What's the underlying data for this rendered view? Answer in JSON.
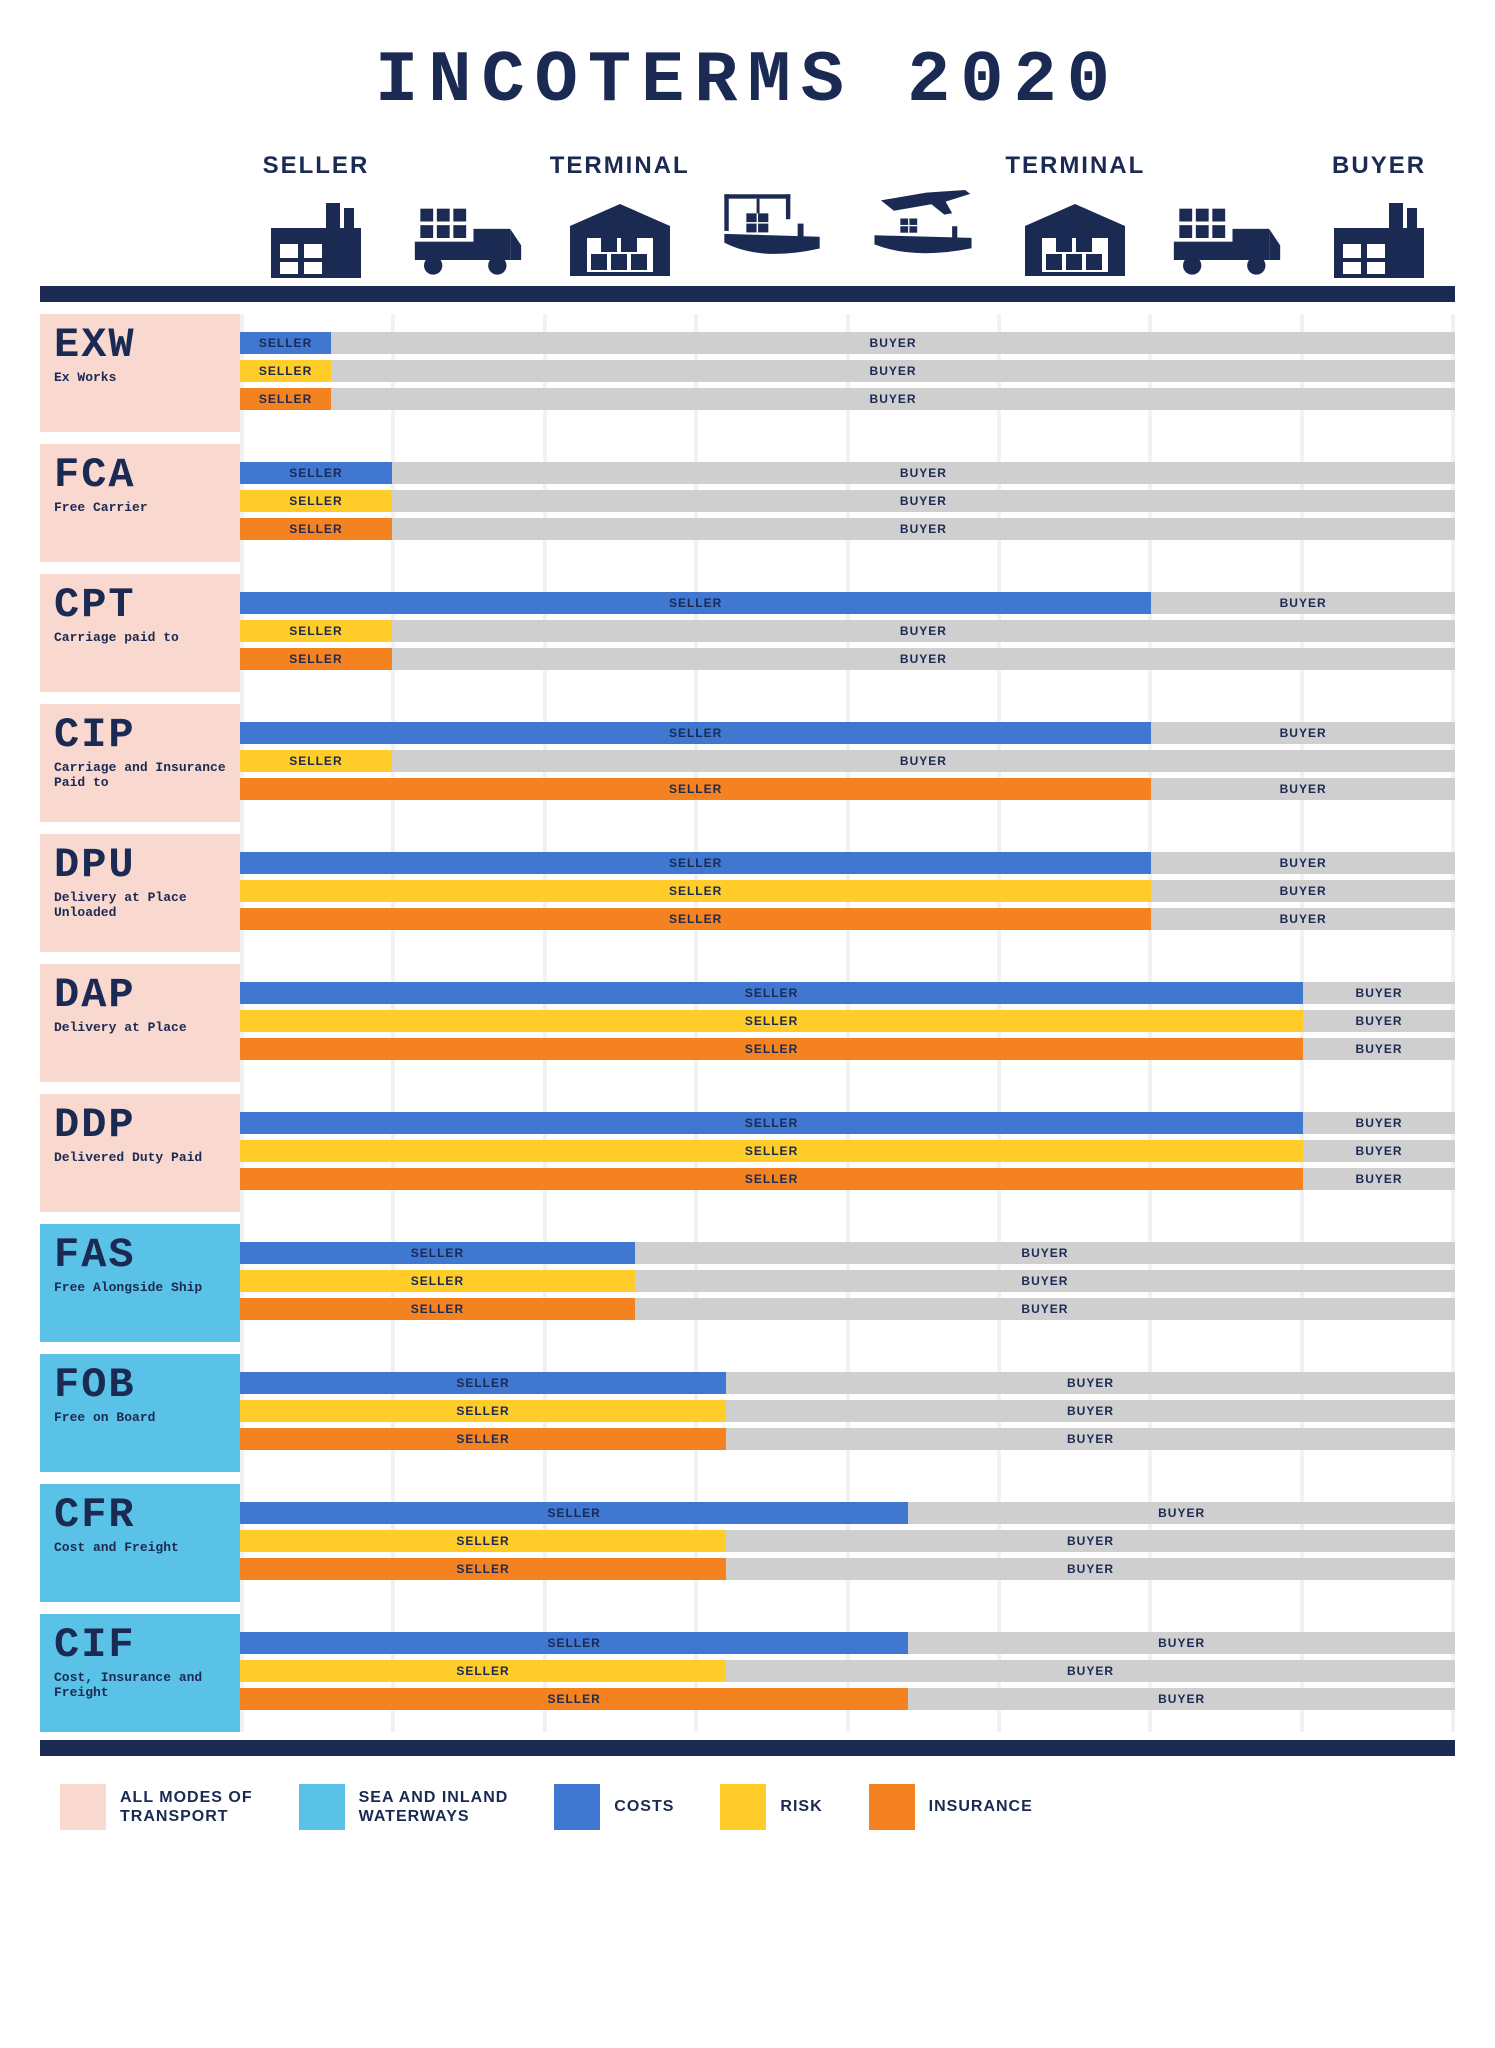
{
  "title": "INCOTERMS 2020",
  "colors": {
    "navy": "#1b2a53",
    "costs": "#3f77d1",
    "risk": "#ffcc29",
    "insurance": "#f58220",
    "buyer": "#cfcfcf",
    "all_modes": "#f8d8cf",
    "sea": "#5bc2e7"
  },
  "columns": 8,
  "headers": [
    {
      "label": "SELLER",
      "icon": "factory"
    },
    {
      "label": "",
      "icon": "truck"
    },
    {
      "label": "TERMINAL",
      "icon": "warehouse"
    },
    {
      "label": "",
      "icon": "ship-crane"
    },
    {
      "label": "",
      "icon": "plane-ship"
    },
    {
      "label": "TERMINAL",
      "icon": "warehouse"
    },
    {
      "label": "",
      "icon": "truck"
    },
    {
      "label": "BUYER",
      "icon": "factory"
    }
  ],
  "legend": [
    {
      "text": "ALL MODES OF\nTRANSPORT",
      "colorKey": "all_modes"
    },
    {
      "text": "SEA AND INLAND\nWATERWAYS",
      "colorKey": "sea"
    },
    {
      "text": "COSTS",
      "colorKey": "costs"
    },
    {
      "text": "RISK",
      "colorKey": "risk"
    },
    {
      "text": "INSURANCE",
      "colorKey": "insurance"
    }
  ],
  "labels": {
    "seller": "SELLER",
    "buyer": "BUYER"
  },
  "terms": [
    {
      "code": "EXW",
      "name": "Ex Works",
      "mode": "all",
      "bars": [
        {
          "type": "costs",
          "seller": 0.6
        },
        {
          "type": "risk",
          "seller": 0.6
        },
        {
          "type": "insurance",
          "seller": 0.6
        }
      ]
    },
    {
      "code": "FCA",
      "name": "Free Carrier",
      "mode": "all",
      "bars": [
        {
          "type": "costs",
          "seller": 1.0
        },
        {
          "type": "risk",
          "seller": 1.0
        },
        {
          "type": "insurance",
          "seller": 1.0
        }
      ]
    },
    {
      "code": "CPT",
      "name": "Carriage paid to",
      "mode": "all",
      "bars": [
        {
          "type": "costs",
          "seller": 6.0
        },
        {
          "type": "risk",
          "seller": 1.0
        },
        {
          "type": "insurance",
          "seller": 1.0
        }
      ]
    },
    {
      "code": "CIP",
      "name": "Carriage and Insurance Paid to",
      "mode": "all",
      "bars": [
        {
          "type": "costs",
          "seller": 6.0
        },
        {
          "type": "risk",
          "seller": 1.0
        },
        {
          "type": "insurance",
          "seller": 6.0
        }
      ]
    },
    {
      "code": "DPU",
      "name": "Delivery at Place Unloaded",
      "mode": "all",
      "bars": [
        {
          "type": "costs",
          "seller": 6.0
        },
        {
          "type": "risk",
          "seller": 6.0
        },
        {
          "type": "insurance",
          "seller": 6.0
        }
      ]
    },
    {
      "code": "DAP",
      "name": "Delivery at Place",
      "mode": "all",
      "bars": [
        {
          "type": "costs",
          "seller": 7.0
        },
        {
          "type": "risk",
          "seller": 7.0
        },
        {
          "type": "insurance",
          "seller": 7.0
        }
      ]
    },
    {
      "code": "DDP",
      "name": "Delivered Duty Paid",
      "mode": "all",
      "bars": [
        {
          "type": "costs",
          "seller": 7.0
        },
        {
          "type": "risk",
          "seller": 7.0
        },
        {
          "type": "insurance",
          "seller": 7.0
        }
      ]
    },
    {
      "code": "FAS",
      "name": "Free Alongside Ship",
      "mode": "sea",
      "bars": [
        {
          "type": "costs",
          "seller": 2.6
        },
        {
          "type": "risk",
          "seller": 2.6
        },
        {
          "type": "insurance",
          "seller": 2.6
        }
      ]
    },
    {
      "code": "FOB",
      "name": "Free on Board",
      "mode": "sea",
      "bars": [
        {
          "type": "costs",
          "seller": 3.2
        },
        {
          "type": "risk",
          "seller": 3.2
        },
        {
          "type": "insurance",
          "seller": 3.2
        }
      ]
    },
    {
      "code": "CFR",
      "name": "Cost and Freight",
      "mode": "sea",
      "bars": [
        {
          "type": "costs",
          "seller": 4.4
        },
        {
          "type": "risk",
          "seller": 3.2
        },
        {
          "type": "insurance",
          "seller": 3.2
        }
      ]
    },
    {
      "code": "CIF",
      "name": "Cost, Insurance and Freight",
      "mode": "sea",
      "bars": [
        {
          "type": "costs",
          "seller": 4.4
        },
        {
          "type": "risk",
          "seller": 3.2
        },
        {
          "type": "insurance",
          "seller": 4.4
        }
      ]
    }
  ]
}
